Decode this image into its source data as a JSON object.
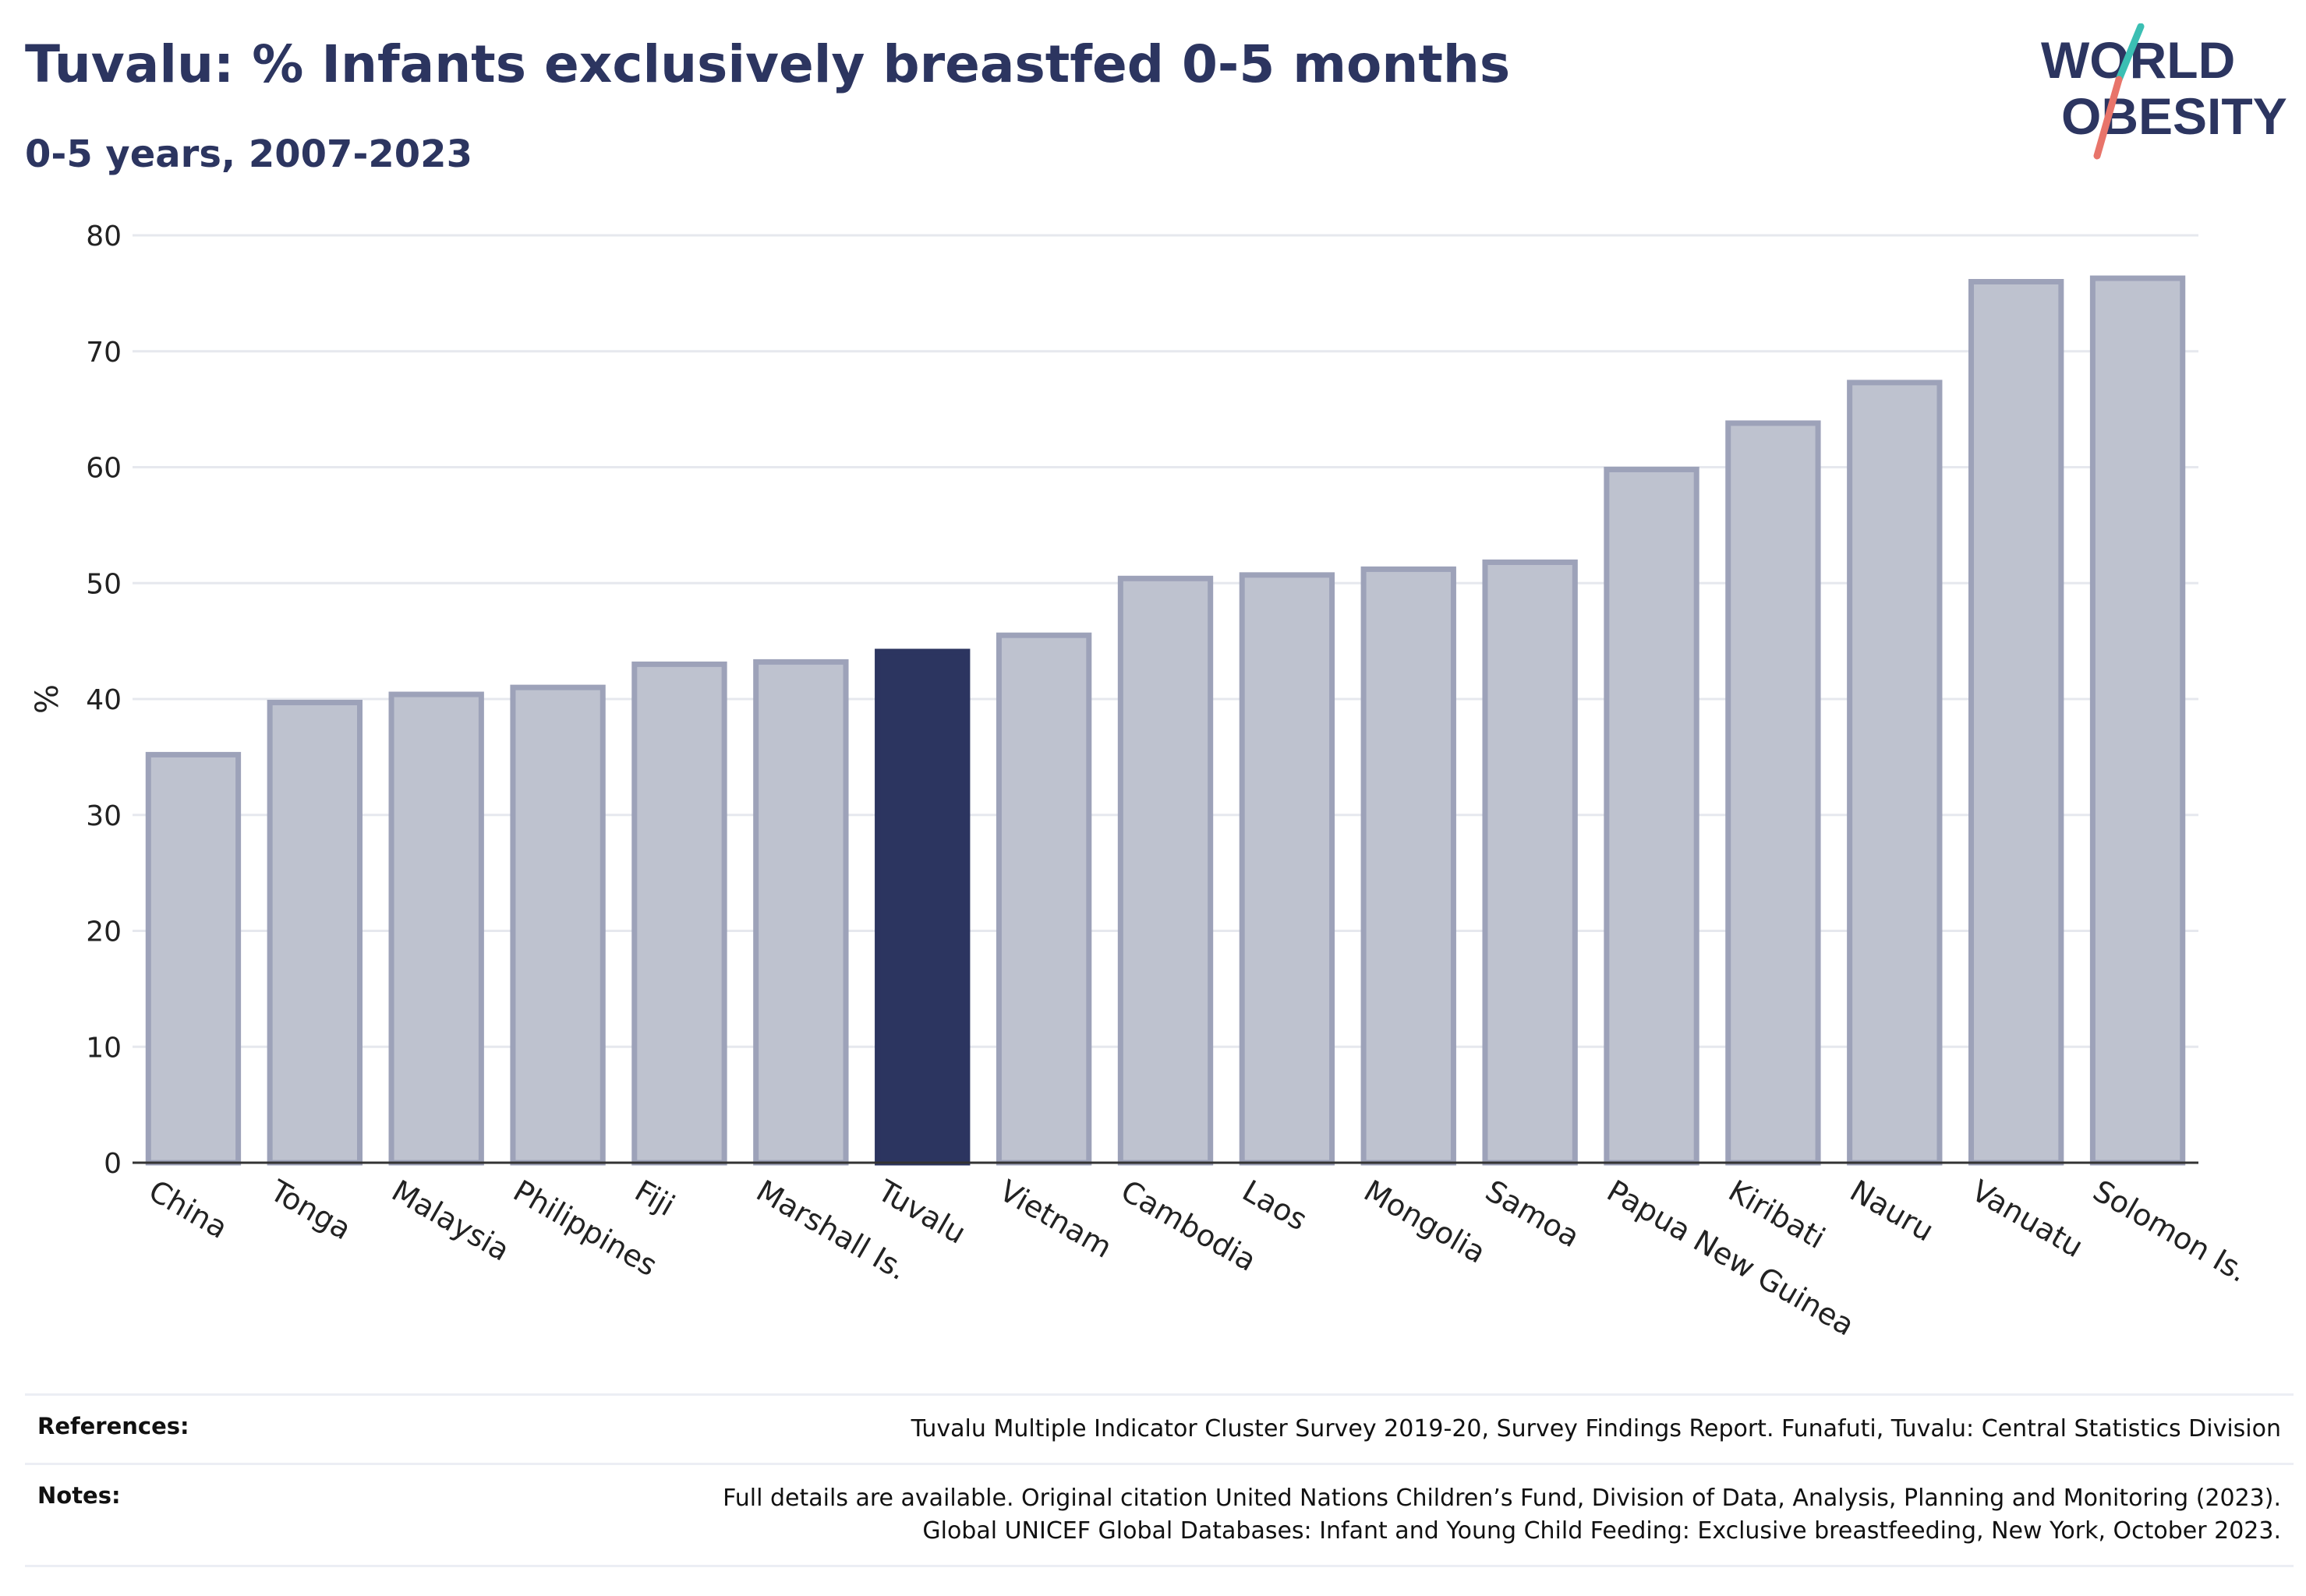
{
  "header": {
    "title": "Tuvalu: % Infants exclusively breastfed 0-5 months",
    "subtitle": "0-5 years, 2007-2023"
  },
  "logo": {
    "line1": "WORLD",
    "line2": "OBESITY"
  },
  "colors": {
    "highlight": "#2c3560",
    "bar_fill": "#bec2cf",
    "bar_stroke": "#9da2b9",
    "grid": "#e6e8ee",
    "logo_text": "#2c3560",
    "logo_teal": "#3bbfb3",
    "logo_coral": "#e8746a"
  },
  "chart_data": {
    "type": "bar",
    "ylabel": "%",
    "xlabel": "",
    "ylim": [
      0,
      80
    ],
    "yticks": [
      0,
      10,
      20,
      30,
      40,
      50,
      60,
      70,
      80
    ],
    "grid": true,
    "highlight": "Tuvalu",
    "categories": [
      "China",
      "Tonga",
      "Malaysia",
      "Philippines",
      "Fiji",
      "Marshall Is.",
      "Tuvalu",
      "Vietnam",
      "Cambodia",
      "Laos",
      "Mongolia",
      "Samoa",
      "Papua New Guinea",
      "Kiribati",
      "Nauru",
      "Vanuatu",
      "Solomon Is."
    ],
    "values": [
      35.2,
      39.7,
      40.4,
      41.0,
      43.0,
      43.2,
      44.1,
      45.5,
      50.4,
      50.7,
      51.2,
      51.8,
      59.8,
      63.8,
      67.3,
      76.0,
      76.3
    ]
  },
  "footer": {
    "references_label": "References:",
    "references_text": "Tuvalu Multiple Indicator Cluster Survey 2019-20, Survey Findings Report. Funafuti, Tuvalu: Central Statistics Division",
    "notes_label": "Notes:",
    "notes_line1": "Full details are available. Original citation United Nations Children’s Fund, Division of Data, Analysis, Planning and Monitoring (2023).",
    "notes_line2": "Global UNICEF Global Databases: Infant and Young Child Feeding: Exclusive breastfeeding, New York, October 2023."
  }
}
